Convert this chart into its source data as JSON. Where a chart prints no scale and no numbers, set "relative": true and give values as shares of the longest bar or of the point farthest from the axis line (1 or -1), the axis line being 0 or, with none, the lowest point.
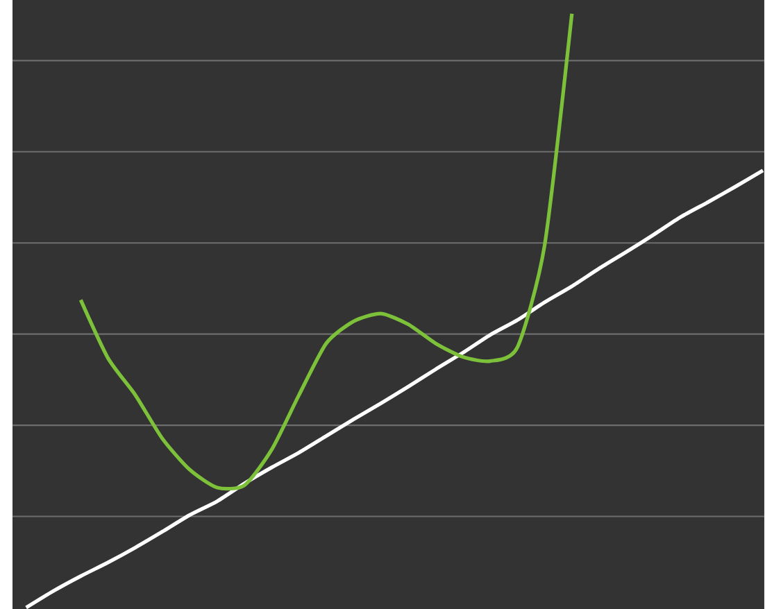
{
  "chart_data": {
    "type": "line",
    "relative": true,
    "grid": "y",
    "categories": [
      null,
      null,
      null,
      null,
      null,
      null,
      null,
      null,
      null,
      null,
      null,
      null,
      null,
      null,
      null,
      null,
      null,
      null,
      null,
      null,
      null,
      null,
      null,
      null,
      null,
      null,
      null,
      null
    ],
    "series": [
      {
        "color": "#ffffff",
        "values": [
          0,
          0.028,
          0.053,
          0.076,
          0.101,
          0.128,
          0.156,
          0.179,
          0.209,
          0.236,
          0.261,
          0.289,
          0.317,
          0.344,
          0.372,
          0.401,
          0.429,
          0.459,
          0.484,
          0.514,
          0.541,
          0.571,
          0.599,
          0.628,
          0.658,
          0.683,
          0.709,
          0.736
        ]
      },
      {
        "color": "#7dc13a",
        "values": [
          null,
          null,
          0.518,
          0.42,
          0.358,
          0.284,
          0.232,
          0.202,
          0.206,
          0.266,
          0.358,
          0.445,
          0.482,
          0.495,
          0.477,
          0.445,
          0.422,
          0.415,
          0.438,
          0.61,
          1.0,
          null,
          null,
          null,
          null,
          null,
          null,
          null
        ]
      }
    ]
  }
}
